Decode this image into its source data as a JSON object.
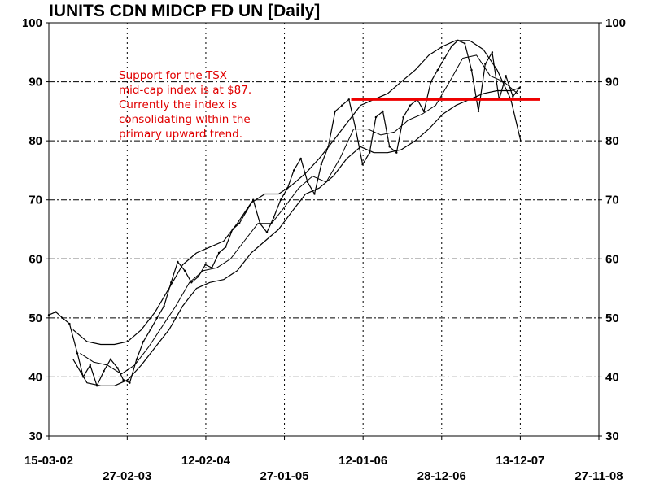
{
  "chart_data": {
    "type": "line",
    "title": "IUNITS CDN MIDCP FD UN  [Daily]",
    "xlabel": "",
    "ylabel": "",
    "ylim": [
      30,
      100
    ],
    "yticks": [
      30,
      40,
      50,
      60,
      70,
      80,
      90,
      100
    ],
    "x_range": [
      "2002-03-15",
      "2008-11-27"
    ],
    "x_tick_labels": [
      {
        "date": "2002-03-15",
        "label": "15-03-02"
      },
      {
        "date": "2003-02-27",
        "label": "27-02-03"
      },
      {
        "date": "2004-02-12",
        "label": "12-02-04"
      },
      {
        "date": "2005-01-27",
        "label": "27-01-05"
      },
      {
        "date": "2006-01-12",
        "label": "12-01-06"
      },
      {
        "date": "2006-12-28",
        "label": "28-12-06"
      },
      {
        "date": "2007-12-13",
        "label": "13-12-07"
      },
      {
        "date": "2008-11-27",
        "label": "27-11-08"
      }
    ],
    "grid": "dotted-dash",
    "colors": {
      "price": "#000000",
      "support": "#ee0000",
      "annotation": "#e00000"
    },
    "price": {
      "x": [
        "2002-03-15",
        "2002-04-15",
        "2002-05-15",
        "2002-06-15",
        "2002-07-20",
        "2002-08-15",
        "2002-09-15",
        "2002-10-15",
        "2002-11-15",
        "2002-12-15",
        "2003-01-15",
        "2003-02-10",
        "2003-03-10",
        "2003-04-10",
        "2003-05-10",
        "2003-06-10",
        "2003-07-10",
        "2003-08-10",
        "2003-09-10",
        "2003-10-10",
        "2003-11-10",
        "2003-12-10",
        "2004-01-10",
        "2004-02-10",
        "2004-03-10",
        "2004-04-10",
        "2004-05-10",
        "2004-06-10",
        "2004-07-10",
        "2004-08-10",
        "2004-09-10",
        "2004-10-10",
        "2004-11-10",
        "2004-12-10",
        "2005-01-10",
        "2005-02-10",
        "2005-03-10",
        "2005-04-10",
        "2005-05-10",
        "2005-06-10",
        "2005-07-10",
        "2005-08-10",
        "2005-09-10",
        "2005-10-10",
        "2005-11-10",
        "2005-12-10",
        "2006-01-10",
        "2006-02-10",
        "2006-03-10",
        "2006-04-10",
        "2006-05-10",
        "2006-06-10",
        "2006-07-10",
        "2006-08-10",
        "2006-09-10",
        "2006-10-10",
        "2006-11-10",
        "2006-12-10",
        "2007-01-10",
        "2007-02-10",
        "2007-03-10",
        "2007-04-10",
        "2007-05-10",
        "2007-06-10",
        "2007-07-10",
        "2007-08-10",
        "2007-09-10",
        "2007-10-10",
        "2007-11-10",
        "2007-12-10"
      ],
      "values": [
        50.5,
        51,
        50,
        49,
        44,
        40,
        42,
        38.5,
        41,
        43,
        41.5,
        39.5,
        39,
        43,
        46,
        48,
        50,
        52,
        56,
        59.5,
        58,
        56,
        57,
        59,
        58.5,
        61,
        62,
        65,
        66,
        68,
        70,
        66,
        64.5,
        67,
        70,
        72,
        75,
        77,
        73,
        71,
        76,
        79,
        85,
        86,
        87,
        82,
        76,
        78,
        84,
        85,
        79,
        78,
        84,
        86,
        87,
        85,
        90,
        92,
        94,
        96,
        97,
        96.5,
        92,
        85,
        93,
        95,
        87,
        91,
        87.5,
        89
      ]
    },
    "ma_inner": {
      "x": [
        "2002-08-01",
        "2002-10-01",
        "2002-12-01",
        "2003-02-01",
        "2003-04-01",
        "2003-06-01",
        "2003-08-01",
        "2003-10-01",
        "2003-12-01",
        "2004-02-01",
        "2004-04-01",
        "2004-06-01",
        "2004-08-01",
        "2004-10-01",
        "2004-12-01",
        "2005-02-01",
        "2005-04-01",
        "2005-06-01",
        "2005-08-01",
        "2005-10-01",
        "2005-12-01",
        "2006-02-01",
        "2006-04-01",
        "2006-06-01",
        "2006-08-01",
        "2006-10-01",
        "2006-12-01",
        "2007-02-01",
        "2007-04-01",
        "2007-06-01",
        "2007-08-01",
        "2007-10-01",
        "2007-12-01"
      ],
      "values": [
        44,
        42.5,
        42,
        40.5,
        42,
        45,
        48.5,
        52,
        56,
        58,
        58.5,
        60,
        63,
        66,
        66,
        69,
        72,
        74,
        73,
        77,
        82,
        82,
        81,
        81.5,
        83.5,
        84.5,
        86,
        90,
        94,
        94.5,
        91,
        90,
        88
      ]
    },
    "envelope_upper": {
      "x": [
        "2002-07-01",
        "2002-09-01",
        "2002-11-01",
        "2003-01-01",
        "2003-03-01",
        "2003-05-01",
        "2003-07-01",
        "2003-09-01",
        "2003-11-01",
        "2004-01-01",
        "2004-03-01",
        "2004-05-01",
        "2004-07-01",
        "2004-09-01",
        "2004-11-01",
        "2005-01-01",
        "2005-03-01",
        "2005-05-01",
        "2005-07-01",
        "2005-09-01",
        "2005-11-01",
        "2006-01-01",
        "2006-03-01",
        "2006-05-01",
        "2006-07-01",
        "2006-09-01",
        "2006-11-01",
        "2007-01-01",
        "2007-03-01",
        "2007-05-01",
        "2007-07-01",
        "2007-09-01",
        "2007-11-01",
        "2007-12-15"
      ],
      "values": [
        48,
        46,
        45.5,
        45.5,
        46,
        48,
        51,
        55,
        59,
        61,
        62,
        63,
        66,
        69.5,
        71,
        71,
        72.5,
        74.5,
        77,
        80,
        83,
        86,
        87,
        88,
        90,
        92,
        94.5,
        96,
        97,
        97,
        95.5,
        92,
        87,
        80
      ]
    },
    "envelope_lower": {
      "x": [
        "2002-07-01",
        "2002-09-01",
        "2002-11-01",
        "2003-01-01",
        "2003-03-01",
        "2003-05-01",
        "2003-07-01",
        "2003-09-01",
        "2003-11-01",
        "2004-01-01",
        "2004-03-01",
        "2004-05-01",
        "2004-07-01",
        "2004-09-01",
        "2004-11-01",
        "2005-01-01",
        "2005-03-01",
        "2005-05-01",
        "2005-07-01",
        "2005-09-01",
        "2005-11-01",
        "2006-01-01",
        "2006-03-01",
        "2006-05-01",
        "2006-07-01",
        "2006-09-01",
        "2006-11-01",
        "2007-01-01",
        "2007-03-01",
        "2007-05-01",
        "2007-07-01",
        "2007-09-01",
        "2007-11-01",
        "2007-12-15"
      ],
      "values": [
        43,
        39,
        38.5,
        38.5,
        39.5,
        42,
        45,
        48,
        52,
        55,
        56,
        56.5,
        58,
        61,
        63,
        65,
        68,
        71,
        72,
        74,
        77,
        79,
        78,
        78,
        78.5,
        80,
        82,
        84.5,
        86,
        87,
        88,
        88.5,
        88.5,
        89
      ]
    },
    "support_line": {
      "value": 87,
      "x_start": "2005-11-20",
      "x_end": "2008-03-10"
    },
    "annotation": [
      "Support for the TSX",
      "mid-cap index is at $87.",
      "Currently the index is",
      "consolidating within the",
      "primary upward trend."
    ]
  }
}
